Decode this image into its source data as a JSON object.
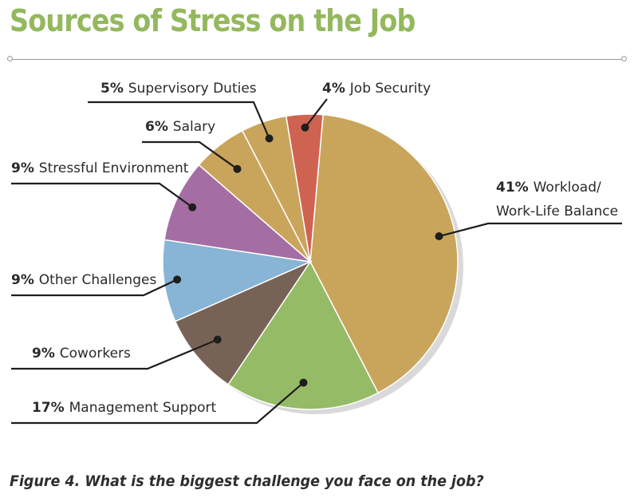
{
  "title": "Sources of Stress on the Job",
  "caption": "Figure 4.  What is the biggest challenge you face on the job?",
  "chart_data": {
    "type": "pie",
    "start_angle_deg": 5,
    "direction": "clockwise",
    "slices": [
      {
        "label": "Workload/ Work-Life Balance",
        "label_lines": [
          "Workload/",
          "Work-Life Balance"
        ],
        "pct_text": "41%",
        "value": 41,
        "color": "#c9a55b"
      },
      {
        "label": "Management Support",
        "label_lines": [
          "Management Support"
        ],
        "pct_text": "17%",
        "value": 17,
        "color": "#95bb66"
      },
      {
        "label": "Coworkers",
        "label_lines": [
          "Coworkers"
        ],
        "pct_text": "9%",
        "value": 9,
        "color": "#776356"
      },
      {
        "label": "Other Challenges",
        "label_lines": [
          "Other Challenges"
        ],
        "pct_text": "9%",
        "value": 9,
        "color": "#88b4d5"
      },
      {
        "label": "Stressful Environment",
        "label_lines": [
          "Stressful Environment"
        ],
        "pct_text": "9%",
        "value": 9,
        "color": "#a46ea4"
      },
      {
        "label": "Salary",
        "label_lines": [
          "Salary"
        ],
        "pct_text": "6%",
        "value": 6,
        "color": "#c9a55b"
      },
      {
        "label": "Supervisory Duties",
        "label_lines": [
          "Supervisory Duties"
        ],
        "pct_text": "5%",
        "value": 5,
        "color": "#c9a55b"
      },
      {
        "label": "Job Security",
        "label_lines": [
          "Job Security"
        ],
        "pct_text": "4%",
        "value": 4,
        "color": "#cf6352"
      }
    ]
  }
}
